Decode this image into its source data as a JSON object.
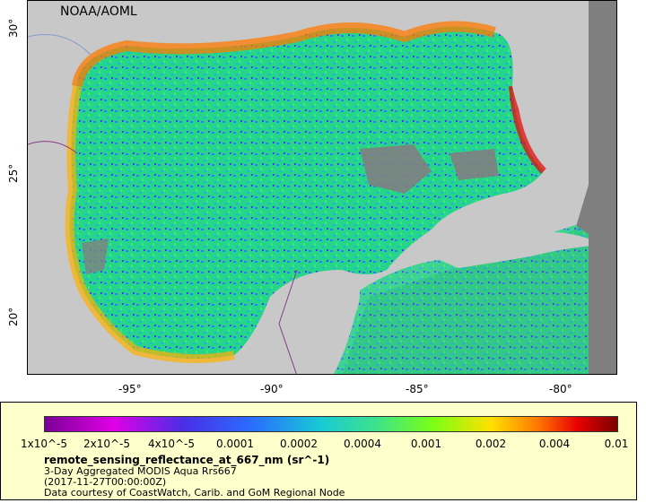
{
  "map": {
    "credit": "NOAA/AOML",
    "x_ticks": [
      "-95°",
      "-90°",
      "-85°",
      "-80°"
    ],
    "y_ticks": [
      "30°",
      "25°",
      "20°"
    ],
    "colors": {
      "land": "#c8c8c8",
      "nodata": "#7f7f7f",
      "frame": "#000000"
    }
  },
  "legend": {
    "scale_labels": [
      "1x10^-5",
      "2x10^-5",
      "4x10^-5",
      "0.0001",
      "0.0002",
      "0.0004",
      "0.001",
      "0.002",
      "0.004",
      "0.01"
    ],
    "variable": "remote_sensing_reflectance_at_667_nm (sr^-1)",
    "product": "3-Day Aggregated MODIS Aqua Rrs667",
    "time": "(2017-11-27T00:00:00Z)",
    "courtesy": "Data courtesy of CoastWatch, Carib. and GoM Regional Node",
    "background": "#ffffcc"
  }
}
